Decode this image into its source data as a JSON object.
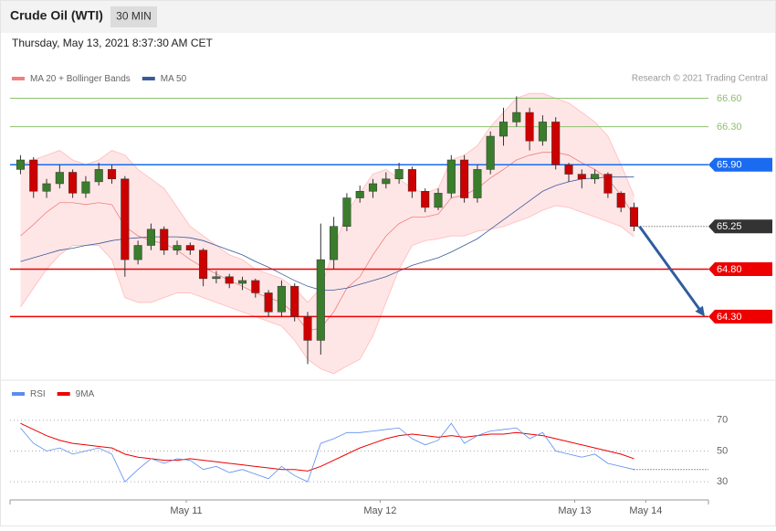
{
  "chart_data": {
    "type": "candlestick",
    "title": "Crude Oil (WTI)",
    "interval": "30 MIN",
    "subtitle": "Thursday, May 13, 2021 8:37:30 AM CET",
    "legend": [
      {
        "name": "MA 20 + Bollinger Bands",
        "color": "#f08080"
      },
      {
        "name": "MA 50",
        "color": "#3a5a9a"
      }
    ],
    "credit": "Research © 2021 Trading Central",
    "up_color": "#3a7d2c",
    "down_color": "#cc0000",
    "ylim": [
      63.64,
      66.72
    ],
    "xlim": [
      -0.8,
      52.7
    ],
    "xticks": [
      {
        "value": 12.7,
        "label": "May 11"
      },
      {
        "value": 27.55,
        "label": "May 12"
      },
      {
        "value": 42.45,
        "label": "May 13"
      },
      {
        "value": 47.9,
        "label": "May 14"
      }
    ],
    "levels": [
      {
        "value": 66.6,
        "label": "66.60",
        "color": "#8dc26f",
        "boxed": false
      },
      {
        "value": 66.3,
        "label": "66.30",
        "color": "#8dc26f",
        "boxed": false
      },
      {
        "value": 65.9,
        "label": "65.90",
        "color": "#1a6bf0",
        "boxed": true
      },
      {
        "value": 65.25,
        "label": "65.25",
        "color": "#333333",
        "boxed": true
      },
      {
        "value": 64.8,
        "label": "64.80",
        "color": "#ee0000",
        "boxed": true
      },
      {
        "value": 64.3,
        "label": "64.30",
        "color": "#ee0000",
        "boxed": true
      }
    ],
    "candles": [
      [
        65.85,
        66.0,
        65.8,
        65.95
      ],
      [
        65.95,
        65.98,
        65.55,
        65.62
      ],
      [
        65.62,
        65.75,
        65.55,
        65.7
      ],
      [
        65.7,
        65.9,
        65.65,
        65.82
      ],
      [
        65.82,
        65.85,
        65.55,
        65.6
      ],
      [
        65.6,
        65.78,
        65.55,
        65.72
      ],
      [
        65.72,
        65.92,
        65.68,
        65.85
      ],
      [
        65.85,
        65.9,
        65.7,
        65.75
      ],
      [
        65.75,
        65.78,
        64.72,
        64.9
      ],
      [
        64.9,
        65.1,
        64.85,
        65.05
      ],
      [
        65.05,
        65.28,
        65.0,
        65.22
      ],
      [
        65.22,
        65.25,
        64.95,
        65.0
      ],
      [
        65.0,
        65.1,
        64.95,
        65.05
      ],
      [
        65.05,
        65.08,
        64.95,
        65.0
      ],
      [
        65.0,
        65.02,
        64.62,
        64.7
      ],
      [
        64.7,
        64.78,
        64.65,
        64.72
      ],
      [
        64.72,
        64.75,
        64.6,
        64.65
      ],
      [
        64.65,
        64.72,
        64.58,
        64.68
      ],
      [
        64.68,
        64.7,
        64.5,
        64.55
      ],
      [
        64.55,
        64.58,
        64.3,
        64.35
      ],
      [
        64.35,
        64.68,
        64.3,
        64.62
      ],
      [
        64.62,
        64.65,
        64.25,
        64.3
      ],
      [
        64.3,
        64.35,
        63.8,
        64.05
      ],
      [
        64.05,
        65.28,
        63.9,
        64.9
      ],
      [
        64.9,
        65.35,
        64.8,
        65.25
      ],
      [
        65.25,
        65.6,
        65.2,
        65.55
      ],
      [
        65.55,
        65.68,
        65.5,
        65.62
      ],
      [
        65.62,
        65.75,
        65.55,
        65.7
      ],
      [
        65.7,
        65.82,
        65.65,
        65.75
      ],
      [
        65.75,
        65.92,
        65.7,
        65.85
      ],
      [
        65.85,
        65.88,
        65.55,
        65.62
      ],
      [
        65.62,
        65.65,
        65.4,
        65.45
      ],
      [
        65.45,
        65.65,
        65.42,
        65.6
      ],
      [
        65.6,
        66.0,
        65.55,
        65.95
      ],
      [
        65.95,
        66.0,
        65.5,
        65.55
      ],
      [
        65.55,
        65.9,
        65.5,
        65.85
      ],
      [
        65.85,
        66.25,
        65.8,
        66.2
      ],
      [
        66.2,
        66.5,
        66.1,
        66.35
      ],
      [
        66.35,
        66.62,
        66.3,
        66.45
      ],
      [
        66.45,
        66.5,
        66.05,
        66.15
      ],
      [
        66.15,
        66.42,
        66.1,
        66.35
      ],
      [
        66.35,
        66.4,
        65.85,
        65.9
      ],
      [
        65.9,
        65.92,
        65.72,
        65.8
      ],
      [
        65.8,
        65.85,
        65.65,
        65.75
      ],
      [
        65.75,
        65.85,
        65.7,
        65.8
      ],
      [
        65.8,
        65.82,
        65.55,
        65.6
      ],
      [
        65.6,
        65.62,
        65.4,
        65.45
      ],
      [
        65.45,
        65.5,
        65.2,
        65.25
      ]
    ],
    "bands": {
      "upper": [
        65.9,
        65.95,
        66.0,
        66.05,
        65.95,
        65.9,
        65.95,
        66.05,
        66.0,
        65.85,
        65.75,
        65.65,
        65.45,
        65.25,
        65.15,
        65.05,
        64.95,
        64.9,
        64.8,
        64.75,
        64.7,
        64.6,
        64.45,
        64.6,
        65.0,
        65.4,
        65.6,
        65.8,
        65.85,
        65.75,
        65.65,
        65.6,
        65.65,
        65.95,
        66.0,
        66.1,
        66.3,
        66.45,
        66.6,
        66.65,
        66.65,
        66.6,
        66.55,
        66.45,
        66.35,
        66.2,
        65.9,
        65.57
      ],
      "lower": [
        64.4,
        64.6,
        64.8,
        64.95,
        65.05,
        65.05,
        65.05,
        64.9,
        64.5,
        64.45,
        64.45,
        64.5,
        64.55,
        64.55,
        64.5,
        64.45,
        64.4,
        64.35,
        64.3,
        64.25,
        64.2,
        64.05,
        63.85,
        63.75,
        63.7,
        63.78,
        63.85,
        64.1,
        64.45,
        64.8,
        65.05,
        65.1,
        65.12,
        65.15,
        65.15,
        65.2,
        65.22,
        65.25,
        65.3,
        65.35,
        65.42,
        65.47,
        65.45,
        65.4,
        65.35,
        65.3,
        65.25,
        65.14
      ]
    },
    "ma20": [
      65.15,
      65.27,
      65.4,
      65.5,
      65.5,
      65.48,
      65.5,
      65.48,
      65.25,
      65.15,
      65.1,
      65.07,
      65.0,
      64.9,
      64.82,
      64.75,
      64.68,
      64.62,
      64.55,
      64.5,
      64.45,
      64.33,
      64.15,
      64.18,
      64.35,
      64.6,
      64.72,
      64.95,
      65.15,
      65.28,
      65.35,
      65.35,
      65.38,
      65.55,
      65.58,
      65.65,
      65.76,
      65.85,
      65.95,
      66.0,
      66.03,
      66.03,
      66.0,
      65.92,
      65.85,
      65.75,
      65.58,
      65.36
    ],
    "ma50": [
      64.88,
      64.92,
      64.96,
      65.0,
      65.02,
      65.05,
      65.07,
      65.1,
      65.12,
      65.13,
      65.14,
      65.14,
      65.14,
      65.13,
      65.1,
      65.05,
      65.0,
      64.95,
      64.88,
      64.82,
      64.75,
      64.68,
      64.62,
      64.58,
      64.58,
      64.6,
      64.64,
      64.68,
      64.72,
      64.78,
      64.84,
      64.88,
      64.92,
      64.98,
      65.05,
      65.12,
      65.22,
      65.32,
      65.42,
      65.52,
      65.62,
      65.68,
      65.72,
      65.75,
      65.76,
      65.77,
      65.77,
      65.77
    ],
    "rsi": {
      "legend": [
        {
          "name": "RSI",
          "color": "#5b8def"
        },
        {
          "name": "9MA",
          "color": "#ee0000"
        }
      ],
      "ylim": [
        20,
        80
      ],
      "yticks": [
        30,
        50,
        70
      ],
      "values": [
        65,
        55,
        50,
        52,
        48,
        50,
        52,
        48,
        30,
        38,
        45,
        42,
        45,
        44,
        38,
        40,
        36,
        38,
        35,
        32,
        40,
        34,
        30,
        55,
        58,
        62,
        62,
        63,
        64,
        65,
        58,
        54,
        57,
        68,
        55,
        60,
        63,
        64,
        65,
        58,
        62,
        50,
        48,
        46,
        48,
        42,
        40,
        38
      ],
      "ma9": [
        68,
        64,
        60,
        57,
        55,
        54,
        53,
        52,
        48,
        46,
        45,
        44,
        44,
        45,
        44,
        43,
        42,
        41,
        40,
        39,
        38,
        38,
        37,
        40,
        44,
        48,
        52,
        55,
        58,
        60,
        61,
        60,
        59,
        60,
        59,
        60,
        61,
        61,
        62,
        61,
        60,
        58,
        56,
        54,
        52,
        50,
        48,
        45
      ]
    }
  }
}
